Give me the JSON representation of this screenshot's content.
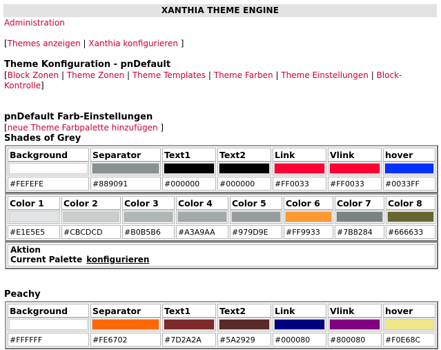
{
  "header": {
    "title": "XANTHIA THEME ENGINE"
  },
  "nav": {
    "administration": "Administration",
    "themes_anzeigen": "Themes anzeigen",
    "xanthia_konfigurieren": "Xanthia konfigurieren"
  },
  "theme_config": {
    "title": "Theme Konfiguration - pnDefault",
    "links": [
      "Block Zonen",
      "Theme Zonen",
      "Theme Templates",
      "Theme Farben",
      "Theme Einstellungen",
      "Block-",
      "Kontrolle"
    ]
  },
  "color_settings": {
    "title": "pnDefault Farb-Einstellungen",
    "add_palette": "neue Theme Farbpalette hinzufügen"
  },
  "palettes": [
    {
      "name": "Shades of Grey",
      "row1": [
        {
          "label": "Background",
          "color": "#FEFEFE"
        },
        {
          "label": "Separator",
          "color": "#889091"
        },
        {
          "label": "Text1",
          "color": "#000000"
        },
        {
          "label": "Text2",
          "color": "#000000"
        },
        {
          "label": "Link",
          "color": "#FF0033"
        },
        {
          "label": "Vlink",
          "color": "#FF0033"
        },
        {
          "label": "hover",
          "color": "#0033FF"
        }
      ],
      "row2": [
        {
          "label": "Color 1",
          "color": "#E1E5E5"
        },
        {
          "label": "Color 2",
          "color": "#CBCDCD"
        },
        {
          "label": "Color 3",
          "color": "#B0B5B6"
        },
        {
          "label": "Color 4",
          "color": "#A3A9AA"
        },
        {
          "label": "Color 5",
          "color": "#979D9E"
        },
        {
          "label": "Color 6",
          "color": "#FF9933"
        },
        {
          "label": "Color 7",
          "color": "#7B8284"
        },
        {
          "label": "Color 8",
          "color": "#666633"
        }
      ],
      "aktion_label": "Aktion",
      "current_palette": "Current Palette",
      "configure": "konfigurieren"
    },
    {
      "name": "Peachy",
      "row1": [
        {
          "label": "Background",
          "color": "#FFFFFF"
        },
        {
          "label": "Separator",
          "color": "#FE6702"
        },
        {
          "label": "Text1",
          "color": "#7D2A2A"
        },
        {
          "label": "Text2",
          "color": "#5A2929"
        },
        {
          "label": "Link",
          "color": "#000080"
        },
        {
          "label": "Vlink",
          "color": "#800080"
        },
        {
          "label": "hover",
          "color": "#F0E68C"
        }
      ]
    }
  ]
}
